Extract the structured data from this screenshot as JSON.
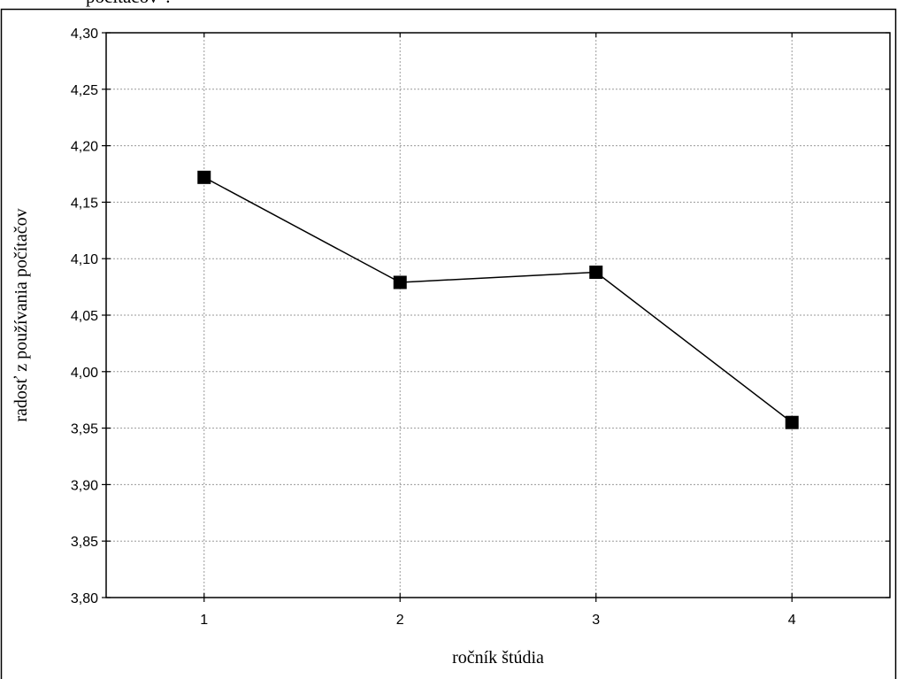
{
  "top_text": "počítačov\".",
  "chart_data": {
    "type": "line",
    "categories": [
      "1",
      "2",
      "3",
      "4"
    ],
    "series": [
      {
        "values": [
          4.172,
          4.079,
          4.088,
          3.955
        ]
      }
    ],
    "xlabel": "ročník štúdia",
    "ylabel": "radosť z používania počítačov",
    "ylim": [
      3.8,
      4.3
    ],
    "yticks": [
      3.8,
      3.85,
      3.9,
      3.95,
      4.0,
      4.05,
      4.1,
      4.15,
      4.2,
      4.25,
      4.3
    ],
    "ytick_labels": [
      "3,80",
      "3,85",
      "3,90",
      "3,95",
      "4,00",
      "4,05",
      "4,10",
      "4,15",
      "4,20",
      "4,25",
      "4,30"
    ],
    "grid": true,
    "marker": "square",
    "line_color": "#000000"
  }
}
